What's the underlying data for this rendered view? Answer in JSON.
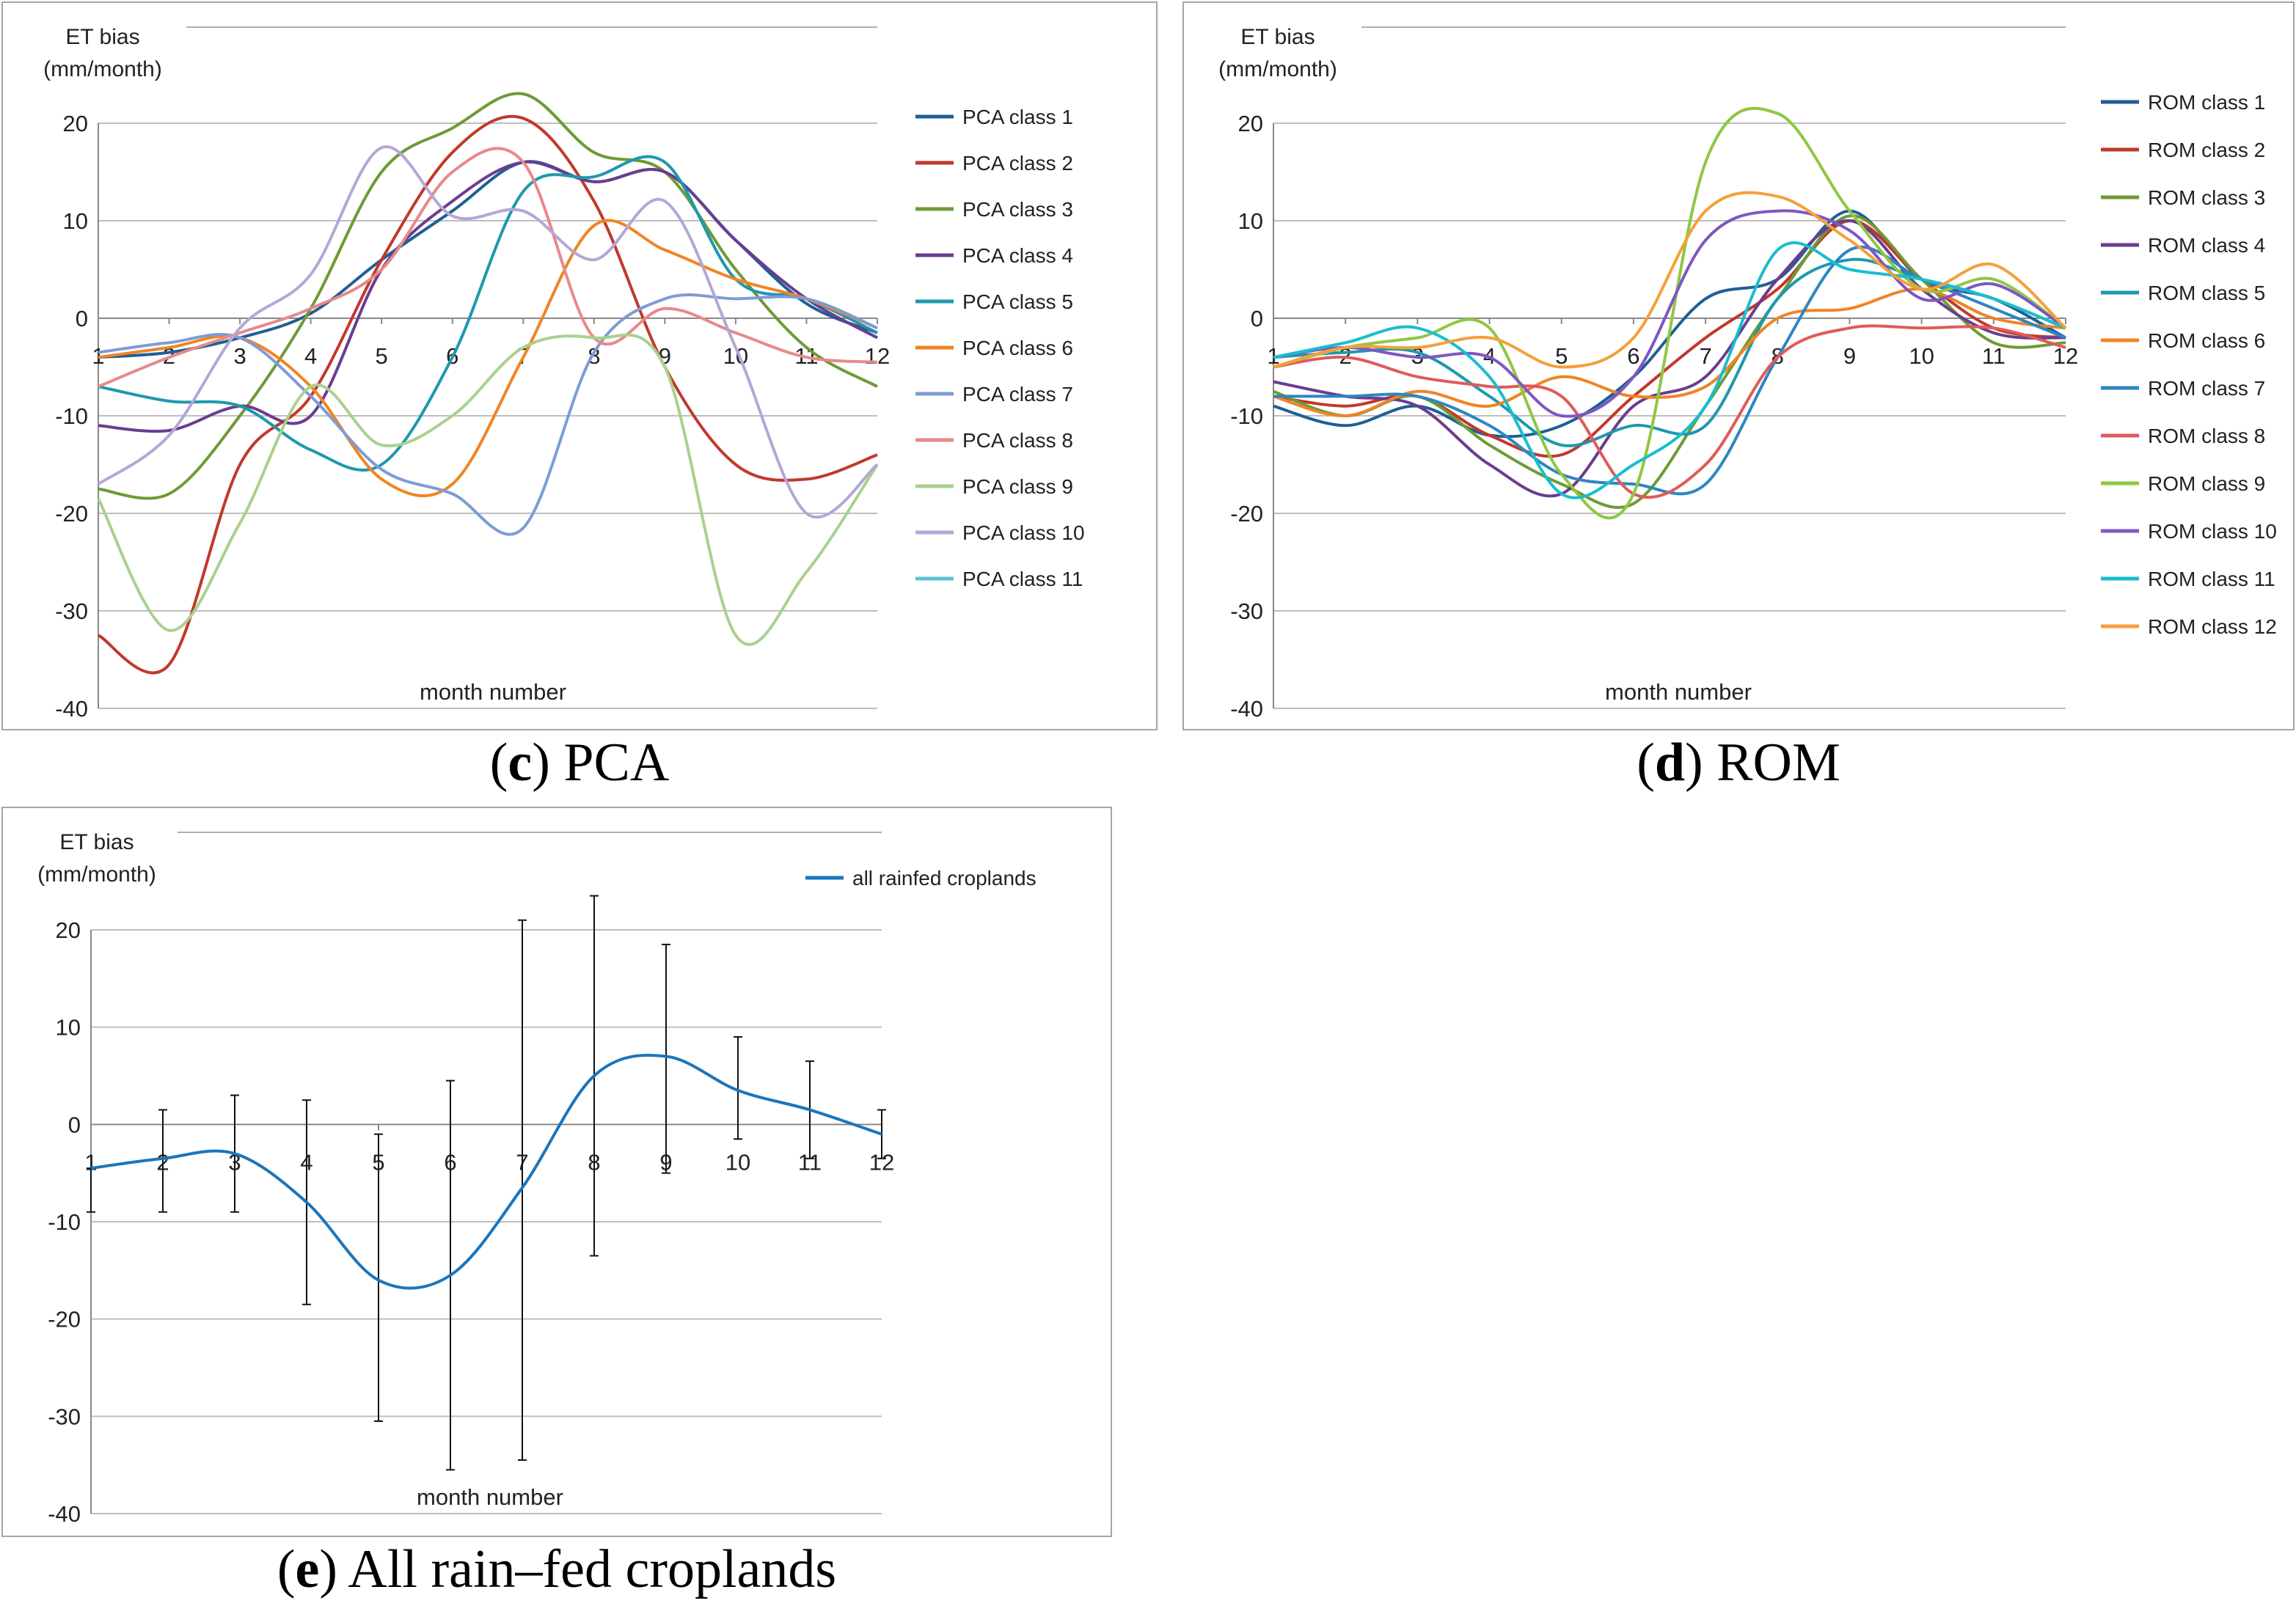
{
  "chart_data": [
    {
      "id": "pca",
      "type": "line",
      "ylabel_line1": "ET bias",
      "ylabel_line2": "(mm/month)",
      "xlabel": "month number",
      "ylim": [
        -40,
        20
      ],
      "yticks": [
        20,
        10,
        0,
        -10,
        -20,
        -30,
        -40
      ],
      "categories": [
        "1",
        "2",
        "3",
        "4",
        "5",
        "6",
        "7",
        "8",
        "9",
        "10",
        "11",
        "12"
      ],
      "caption_letter": "c",
      "caption_text": " PCA",
      "series": [
        {
          "name": "PCA class 1",
          "color": "#1f5e96",
          "values": [
            -4,
            -3.5,
            -2,
            0.5,
            6,
            11,
            16,
            14,
            15,
            8,
            1.5,
            -1.5
          ]
        },
        {
          "name": "PCA class 2",
          "color": "#c0392b",
          "values": [
            -32.5,
            -35.5,
            -15,
            -8,
            6,
            17,
            20.5,
            12,
            -5,
            -15,
            -16.5,
            -14
          ]
        },
        {
          "name": "PCA class 3",
          "color": "#6e9a35",
          "values": [
            -17.5,
            -18,
            -10,
            1,
            15,
            19.5,
            23,
            17,
            15,
            5,
            -3,
            -7
          ]
        },
        {
          "name": "PCA class 4",
          "color": "#6a3d8f",
          "values": [
            -11,
            -11.5,
            -9,
            -10,
            5,
            12,
            16,
            14,
            15,
            8,
            2,
            -2
          ]
        },
        {
          "name": "PCA class 5",
          "color": "#1e98ae",
          "values": [
            -7,
            -8.5,
            -9,
            -13.5,
            -15,
            -4,
            13,
            14.5,
            16,
            4,
            2,
            -1.5
          ]
        },
        {
          "name": "PCA class 6",
          "color": "#f08424",
          "values": [
            -4,
            -3,
            -2,
            -7,
            -16.5,
            -17,
            -4,
            9.5,
            7,
            4,
            2,
            -1
          ]
        },
        {
          "name": "PCA class 7",
          "color": "#7e9cd4",
          "values": [
            -3.5,
            -2.5,
            -2,
            -8,
            -15.5,
            -18,
            -21.5,
            -3.5,
            2,
            2,
            2,
            -1
          ]
        },
        {
          "name": "PCA class 8",
          "color": "#e8898a",
          "values": [
            -7,
            -4,
            -1.5,
            1,
            5,
            15,
            16,
            -2,
            1,
            -1.5,
            -4,
            -4.5
          ]
        },
        {
          "name": "PCA class 9",
          "color": "#a9d18e",
          "values": [
            -18.5,
            -32,
            -21,
            -7,
            -13,
            -10,
            -3,
            -2,
            -5,
            -32.5,
            -26,
            -15
          ]
        },
        {
          "name": "PCA class 10",
          "color": "#b4a7d6",
          "values": [
            -17,
            -12,
            -1,
            4.5,
            17.5,
            10.5,
            11,
            6,
            12,
            -3,
            -20,
            -15
          ]
        },
        {
          "name": "PCA class 11",
          "color": "#5cc5d6",
          "values": [
            null,
            null,
            null,
            null,
            null,
            null,
            null,
            null,
            null,
            null,
            null,
            null
          ]
        }
      ]
    },
    {
      "id": "rom",
      "type": "line",
      "ylabel_line1": "ET bias",
      "ylabel_line2": "(mm/month)",
      "xlabel": "month number",
      "ylim": [
        -40,
        20
      ],
      "yticks": [
        20,
        10,
        0,
        -10,
        -20,
        -30,
        -40
      ],
      "categories": [
        "1",
        "2",
        "3",
        "4",
        "5",
        "6",
        "7",
        "8",
        "9",
        "10",
        "11",
        "12"
      ],
      "caption_letter": "d",
      "caption_text": " ROM",
      "series": [
        {
          "name": "ROM class 1",
          "color": "#1f5e96",
          "values": [
            -9,
            -11,
            -9,
            -12,
            -11,
            -6,
            2,
            4,
            11,
            4,
            2,
            -2
          ]
        },
        {
          "name": "ROM class 2",
          "color": "#c0392b",
          "values": [
            -8,
            -9,
            -8,
            -12,
            -14,
            -8,
            -2,
            3,
            10,
            4,
            -1,
            -2
          ]
        },
        {
          "name": "ROM class 3",
          "color": "#6e9a35",
          "values": [
            -7.5,
            -10,
            -8,
            -13,
            -17,
            -19,
            -9,
            2,
            10.5,
            4,
            -2.5,
            -2.5
          ]
        },
        {
          "name": "ROM class 4",
          "color": "#6a3d8f",
          "values": [
            -6.5,
            -8,
            -9,
            -15,
            -18,
            -9,
            -6,
            4,
            10,
            3,
            -1.5,
            -2
          ]
        },
        {
          "name": "ROM class 5",
          "color": "#1e98ae",
          "values": [
            -4,
            -3.5,
            -3.5,
            -8,
            -13,
            -11,
            -11,
            2,
            6,
            4,
            2,
            -1
          ]
        },
        {
          "name": "ROM class 6",
          "color": "#f08424",
          "values": [
            -8,
            -10,
            -7.5,
            -9,
            -6,
            -8,
            -7,
            0,
            1,
            3,
            0,
            -1
          ]
        },
        {
          "name": "ROM class 7",
          "color": "#2e86c1",
          "values": [
            -8,
            -8,
            -8,
            -11,
            -16,
            -17,
            -17,
            -4,
            7,
            4,
            1,
            -2
          ]
        },
        {
          "name": "ROM class 8",
          "color": "#e05a5a",
          "values": [
            -5,
            -4,
            -6,
            -7,
            -8,
            -18,
            -15,
            -4,
            -1,
            -1,
            -1,
            -3
          ]
        },
        {
          "name": "ROM class 9",
          "color": "#8fc742",
          "values": [
            -5,
            -3,
            -2,
            -1,
            -16,
            -18,
            16,
            21,
            11,
            3,
            4,
            -1
          ]
        },
        {
          "name": "ROM class 10",
          "color": "#7e57c2",
          "values": [
            -4,
            -3,
            -4,
            -4,
            -10,
            -6,
            8,
            11,
            9,
            2,
            3.5,
            -1
          ]
        },
        {
          "name": "ROM class 11",
          "color": "#17becf",
          "values": [
            -4,
            -2.5,
            -1,
            -6,
            -18,
            -15,
            -9,
            7,
            5,
            4,
            2,
            -1
          ]
        },
        {
          "name": "ROM class 12",
          "color": "#f5a03a",
          "values": [
            -5,
            -3,
            -3,
            -2,
            -5,
            -2,
            11,
            12.5,
            8,
            3,
            5.5,
            -1
          ]
        }
      ]
    },
    {
      "id": "all",
      "type": "line",
      "ylabel_line1": "ET bias",
      "ylabel_line2": "(mm/month)",
      "xlabel": "month number",
      "ylim": [
        -40,
        20
      ],
      "yticks": [
        20,
        10,
        0,
        -10,
        -20,
        -30,
        -40
      ],
      "categories": [
        "1",
        "2",
        "3",
        "4",
        "5",
        "6",
        "7",
        "8",
        "9",
        "10",
        "11",
        "12"
      ],
      "caption_letter": "e",
      "caption_text": " All rain–fed croplands",
      "series": [
        {
          "name": "all rainfed croplands",
          "color": "#1b75bb",
          "values": [
            -4.5,
            -3.5,
            -3,
            -8,
            -16,
            -15.5,
            -6.5,
            5,
            7,
            3.5,
            1.5,
            -1
          ],
          "error_upper": [
            -4.5,
            1.5,
            3,
            2.5,
            -1,
            4.5,
            21,
            23.5,
            18.5,
            9,
            6.5,
            1.5
          ],
          "error_lower": [
            -9,
            -9,
            -9,
            -18.5,
            -30.5,
            -35.5,
            -34.5,
            -13.5,
            -5,
            -1.5,
            -3.5,
            -3.5
          ]
        }
      ]
    }
  ]
}
